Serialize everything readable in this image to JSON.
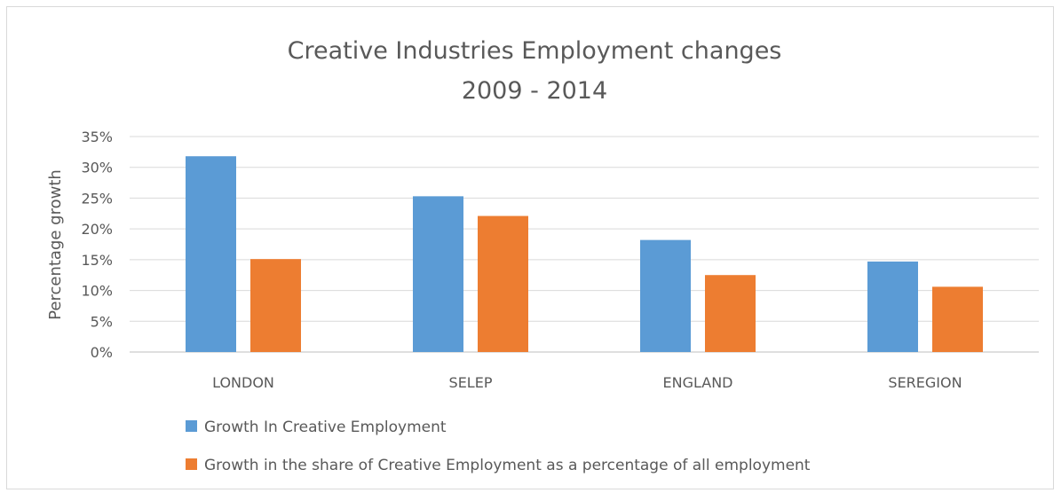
{
  "chart_data": {
    "type": "bar",
    "title": "Creative Industries Employment changes",
    "subtitle": "2009 - 2014",
    "xlabel": "",
    "ylabel": "Percentage growth",
    "ylim": [
      0,
      35
    ],
    "yticks": [
      0,
      5,
      10,
      15,
      20,
      25,
      30,
      35
    ],
    "ytick_labels": [
      "0%",
      "5%",
      "10%",
      "15%",
      "20%",
      "25%",
      "30%",
      "35%"
    ],
    "grid": true,
    "legend_position": "bottom-left",
    "categories": [
      "LONDON",
      "SELEP",
      "ENGLAND",
      "SEREGION"
    ],
    "series": [
      {
        "name": "Growth In Creative Employment",
        "color": "#5b9bd5",
        "values": [
          31.8,
          25.3,
          18.2,
          14.7
        ]
      },
      {
        "name": "Growth in the share of Creative Employment as a percentage of all employment",
        "color": "#ed7d31",
        "values": [
          15.1,
          22.1,
          12.5,
          10.6
        ]
      }
    ]
  }
}
